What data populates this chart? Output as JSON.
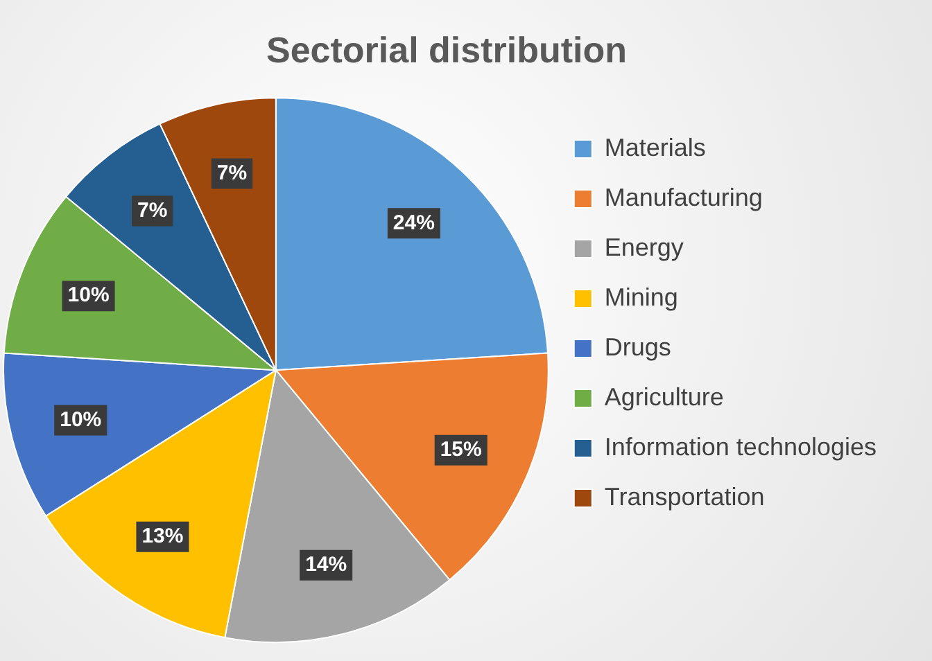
{
  "chart_data": {
    "type": "pie",
    "title": "Sectorial distribution",
    "categories": [
      "Materials",
      "Manufacturing",
      "Energy",
      "Mining",
      "Drugs",
      "Agriculture",
      "Information technologies",
      "Transportation"
    ],
    "values": [
      24,
      15,
      14,
      13,
      10,
      10,
      7,
      7
    ],
    "value_labels": [
      "24%",
      "15%",
      "14%",
      "13%",
      "10%",
      "10%",
      "7%",
      "7%"
    ],
    "colors": [
      "#5b9bd5",
      "#ed7d31",
      "#a5a5a5",
      "#ffc000",
      "#4472c4",
      "#70ad47",
      "#255e91",
      "#9e480e"
    ],
    "legend": "right"
  }
}
